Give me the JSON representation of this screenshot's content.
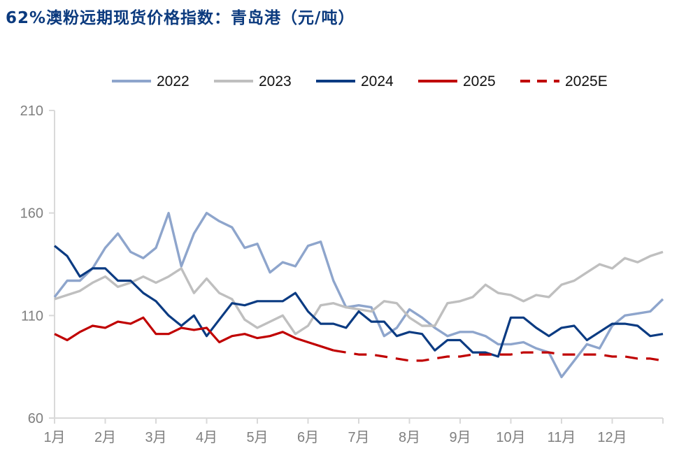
{
  "chart_data": {
    "type": "line",
    "title": "62%澳粉远期现货价格指数：青岛港（元/吨）",
    "xlabel": "",
    "ylabel": "",
    "x_unit": "month (1 = start of 1月, step = quarter month)",
    "x": [
      1,
      1.25,
      1.5,
      1.75,
      2,
      2.25,
      2.5,
      2.75,
      3,
      3.25,
      3.5,
      3.75,
      4,
      4.25,
      4.5,
      4.75,
      5,
      5.25,
      5.5,
      5.75,
      6,
      6.25,
      6.5,
      6.75,
      7,
      7.25,
      7.5,
      7.75,
      8,
      8.25,
      8.5,
      8.75,
      9,
      9.25,
      9.5,
      9.75,
      10,
      10.25,
      10.5,
      10.75,
      11,
      11.25,
      11.5,
      11.75,
      12,
      12.25,
      12.5,
      12.75,
      13
    ],
    "xticks": [
      1,
      2,
      3,
      4,
      5,
      6,
      7,
      8,
      9,
      10,
      11,
      12,
      13
    ],
    "xtick_labels": [
      "1月",
      "2月",
      "3月",
      "4月",
      "5月",
      "6月",
      "7月",
      "8月",
      "9月",
      "10月",
      "11月",
      "12月"
    ],
    "ylim": [
      60,
      210
    ],
    "yticks": [
      60,
      110,
      160,
      210
    ],
    "ytick_labels": [
      "60",
      "110",
      "160",
      "210"
    ],
    "grid": false,
    "legend_position": "top",
    "series": [
      {
        "name": "2022",
        "color": "#8EA5CC",
        "style": "solid",
        "values": [
          119,
          127,
          127,
          133,
          143,
          150,
          141,
          138,
          143,
          160,
          134,
          150,
          160,
          156,
          153,
          143,
          145,
          131,
          136,
          134,
          144,
          146,
          127,
          114,
          115,
          114,
          100,
          104,
          113,
          109,
          104,
          100,
          102,
          102,
          100,
          96,
          96,
          97,
          94,
          92,
          80,
          88,
          96,
          94,
          105,
          110,
          111,
          112,
          118
        ]
      },
      {
        "name": "2023",
        "color": "#BFBFBF",
        "style": "solid",
        "values": [
          118,
          120,
          122,
          126,
          129,
          124,
          126,
          129,
          126,
          129,
          133,
          121,
          128,
          121,
          118,
          108,
          104,
          107,
          110,
          101,
          105,
          115,
          116,
          114,
          113,
          112,
          117,
          116,
          109,
          105,
          105,
          116,
          117,
          119,
          125,
          121,
          120,
          117,
          120,
          119,
          125,
          127,
          131,
          135,
          133,
          138,
          136,
          139,
          141
        ]
      },
      {
        "name": "2024",
        "color": "#0B3B82",
        "style": "solid",
        "values": [
          144,
          139,
          129,
          133,
          133,
          127,
          127,
          121,
          117,
          110,
          105,
          110,
          100,
          108,
          116,
          115,
          117,
          117,
          117,
          121,
          112,
          106,
          106,
          104,
          112,
          107,
          107,
          100,
          102,
          101,
          93,
          98,
          98,
          92,
          92,
          90,
          109,
          109,
          104,
          100,
          104,
          105,
          98,
          102,
          106,
          106,
          105,
          100,
          101
        ]
      },
      {
        "name": "2025",
        "color": "#C00000",
        "style": "solid",
        "values": [
          101,
          98,
          102,
          105,
          104,
          107,
          106,
          109,
          101,
          101,
          104,
          103,
          104,
          97,
          100,
          101,
          99,
          100,
          102,
          99,
          97,
          95,
          93,
          null,
          null,
          null,
          null,
          null,
          null,
          null,
          null,
          null,
          null,
          null,
          null,
          null,
          null,
          null,
          null,
          null,
          null,
          null,
          null,
          null,
          null,
          null,
          null,
          null,
          null
        ]
      },
      {
        "name": "2025E",
        "color": "#C00000",
        "style": "dashed",
        "values": [
          null,
          null,
          null,
          null,
          null,
          null,
          null,
          null,
          null,
          null,
          null,
          null,
          null,
          null,
          null,
          null,
          null,
          null,
          null,
          null,
          null,
          null,
          93,
          92,
          91,
          91,
          90,
          89,
          88,
          88,
          89,
          90,
          90,
          91,
          91,
          91,
          91,
          92,
          92,
          92,
          91,
          91,
          91,
          91,
          90,
          90,
          89,
          89,
          88
        ]
      }
    ]
  }
}
